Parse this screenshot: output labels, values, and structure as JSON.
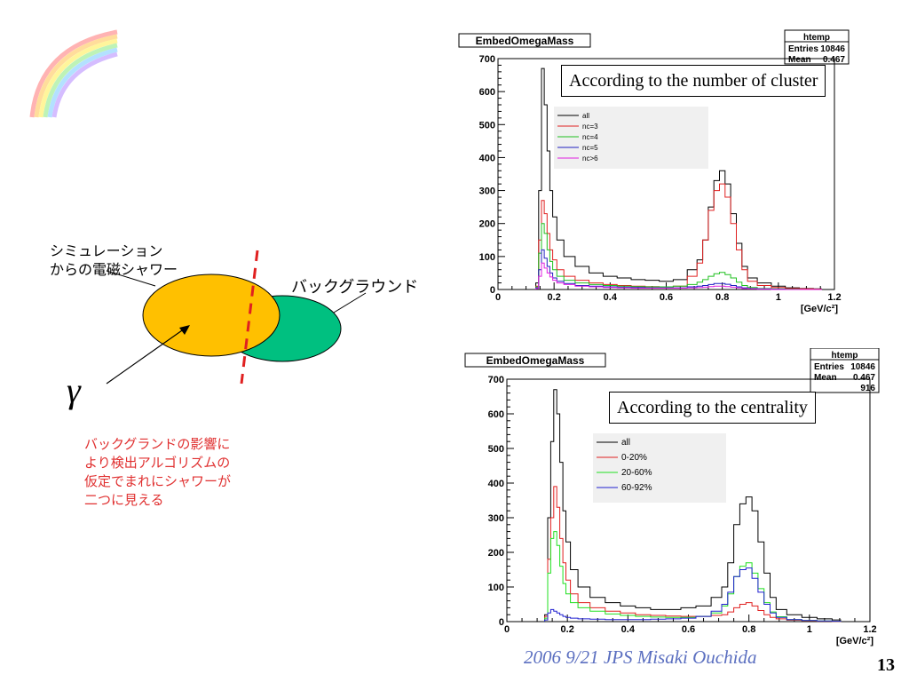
{
  "diagram": {
    "label_simulation": [
      "シミュレーション",
      "からの電磁シャワー"
    ],
    "label_background": "バックグラウンド",
    "gamma_symbol": "γ",
    "note_lines": [
      "バックグランドの影響に",
      "より検出アルゴリズムの",
      "仮定でまれにシャワーが",
      "二つに見える"
    ],
    "colors": {
      "simulation_fill": "#ffc000",
      "background_fill": "#00c080",
      "dashed_line": "#e02020",
      "note_text": "#e03030"
    }
  },
  "chart_data": [
    {
      "type": "line",
      "title": "EmbedOmegaMass",
      "callout": "According to the number of cluster",
      "stats": {
        "name": "htemp",
        "rows": [
          [
            "Entries",
            "10846"
          ],
          [
            "Mean",
            "0.467"
          ]
        ]
      },
      "xlabel": "[GeV/c²]",
      "xlim": [
        0,
        1.2
      ],
      "ylim": [
        0,
        700
      ],
      "xticks": [
        "0",
        "0.2",
        "0.4",
        "0.6",
        "0.8",
        "1",
        "1.2"
      ],
      "yticks": [
        "0",
        "100",
        "200",
        "300",
        "400",
        "500",
        "600",
        "700"
      ],
      "legend_position": "top-center",
      "x": [
        0.14,
        0.15,
        0.16,
        0.17,
        0.18,
        0.19,
        0.2,
        0.22,
        0.25,
        0.3,
        0.35,
        0.4,
        0.45,
        0.5,
        0.55,
        0.6,
        0.65,
        0.7,
        0.72,
        0.74,
        0.76,
        0.78,
        0.8,
        0.82,
        0.84,
        0.86,
        0.88,
        0.9,
        0.95,
        1.0,
        1.05,
        1.1,
        1.15
      ],
      "series": [
        {
          "name": "all",
          "color": "#000000",
          "values": [
            20,
            300,
            670,
            560,
            420,
            300,
            220,
            150,
            100,
            70,
            50,
            40,
            35,
            30,
            28,
            25,
            30,
            60,
            90,
            150,
            250,
            330,
            360,
            320,
            230,
            140,
            70,
            35,
            20,
            10,
            5,
            3,
            2
          ]
        },
        {
          "name": "nc=3",
          "color": "#e02020",
          "values": [
            10,
            150,
            270,
            230,
            170,
            120,
            90,
            60,
            40,
            28,
            20,
            15,
            12,
            10,
            9,
            8,
            10,
            40,
            80,
            150,
            240,
            300,
            320,
            280,
            200,
            120,
            60,
            25,
            12,
            6,
            3,
            2,
            1
          ]
        },
        {
          "name": "nc=4",
          "color": "#20c020",
          "values": [
            8,
            110,
            200,
            170,
            120,
            85,
            60,
            40,
            28,
            20,
            15,
            12,
            10,
            9,
            8,
            8,
            10,
            15,
            22,
            30,
            40,
            48,
            52,
            45,
            35,
            22,
            12,
            6,
            3,
            2,
            1,
            0,
            0
          ]
        },
        {
          "name": "nc=5",
          "color": "#2020c0",
          "values": [
            5,
            60,
            120,
            95,
            70,
            50,
            35,
            25,
            18,
            12,
            10,
            8,
            7,
            6,
            5,
            5,
            5,
            8,
            10,
            12,
            15,
            18,
            18,
            16,
            12,
            8,
            5,
            3,
            2,
            1,
            0,
            0,
            0
          ]
        },
        {
          "name": "nc>6",
          "color": "#e020e0",
          "values": [
            3,
            40,
            80,
            65,
            50,
            38,
            28,
            20,
            15,
            10,
            8,
            6,
            5,
            4,
            4,
            4,
            4,
            5,
            6,
            7,
            9,
            10,
            10,
            9,
            7,
            5,
            3,
            2,
            1,
            0,
            0,
            0,
            0
          ]
        }
      ]
    },
    {
      "type": "line",
      "title": "EmbedOmegaMass",
      "callout": "According to the centrality",
      "stats": {
        "name": "htemp",
        "rows": [
          [
            "Entries",
            "10846"
          ],
          [
            "Mean",
            "0.467"
          ]
        ],
        "partial": "916"
      },
      "xlabel": "[GeV/c²]",
      "xlim": [
        0,
        1.2
      ],
      "ylim": [
        0,
        700
      ],
      "xticks": [
        "0",
        "0.2",
        "0.4",
        "0.6",
        "0.8",
        "1",
        "1.2"
      ],
      "yticks": [
        "0",
        "100",
        "200",
        "300",
        "400",
        "500",
        "600",
        "700"
      ],
      "legend_position": "top-center",
      "x": [
        0.13,
        0.14,
        0.15,
        0.16,
        0.17,
        0.18,
        0.19,
        0.2,
        0.22,
        0.25,
        0.3,
        0.35,
        0.4,
        0.45,
        0.5,
        0.55,
        0.6,
        0.65,
        0.7,
        0.72,
        0.74,
        0.76,
        0.78,
        0.8,
        0.82,
        0.84,
        0.86,
        0.88,
        0.9,
        0.95,
        1.0,
        1.05,
        1.1
      ],
      "series": [
        {
          "name": "all",
          "color": "#000000",
          "values": [
            20,
            300,
            520,
            670,
            600,
            460,
            320,
            230,
            150,
            100,
            70,
            55,
            45,
            40,
            35,
            35,
            40,
            45,
            70,
            100,
            170,
            280,
            340,
            360,
            320,
            230,
            140,
            70,
            35,
            20,
            12,
            8,
            5
          ]
        },
        {
          "name": "0-20%",
          "color": "#e02020",
          "values": [
            15,
            180,
            300,
            390,
            330,
            240,
            170,
            120,
            80,
            55,
            40,
            30,
            25,
            20,
            18,
            16,
            15,
            15,
            18,
            20,
            28,
            40,
            50,
            55,
            45,
            32,
            20,
            12,
            8,
            4,
            2,
            1,
            0
          ]
        },
        {
          "name": "20-60%",
          "color": "#20e020",
          "values": [
            10,
            140,
            240,
            260,
            220,
            160,
            110,
            80,
            55,
            40,
            30,
            22,
            18,
            15,
            13,
            12,
            12,
            15,
            25,
            45,
            80,
            130,
            160,
            170,
            140,
            95,
            55,
            28,
            14,
            6,
            3,
            2,
            1
          ]
        },
        {
          "name": "60-92%",
          "color": "#2020d0",
          "values": [
            5,
            25,
            35,
            30,
            25,
            20,
            15,
            12,
            10,
            8,
            7,
            6,
            6,
            6,
            7,
            8,
            10,
            15,
            30,
            50,
            85,
            130,
            150,
            155,
            125,
            85,
            50,
            25,
            12,
            6,
            3,
            2,
            1
          ]
        }
      ]
    }
  ],
  "footer": {
    "text": "2006 9/21 JPS    Misaki Ouchida",
    "page": "13"
  }
}
